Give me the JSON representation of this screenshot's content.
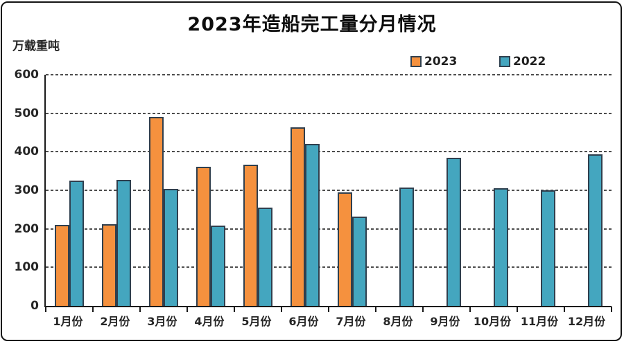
{
  "title": "2023年造船完工量分月情况",
  "unit_label": "万载重吨",
  "legend": [
    {
      "label": "2023",
      "color": "#F5913E"
    },
    {
      "label": "2022",
      "color": "#44A6BF"
    }
  ],
  "colors": {
    "bar_2023": "#F5913E",
    "bar_2022": "#44A6BF",
    "bar_border": "#2F3F4E",
    "gridline": "#4D4D4D",
    "axis": "#1A1A1A",
    "frame": "#141414",
    "background": "#FFFFFF"
  },
  "y_axis": {
    "ticks": [
      0,
      100,
      200,
      300,
      400,
      500,
      600
    ],
    "max": 600
  },
  "chart_data": {
    "type": "bar",
    "title": "2023年造船完工量分月情况",
    "ylabel": "万载重吨",
    "xlabel": "",
    "ylim": [
      0,
      600
    ],
    "grid": true,
    "legend_position": "top-right",
    "categories": [
      "1月份",
      "2月份",
      "3月份",
      "4月份",
      "5月份",
      "6月份",
      "7月份",
      "8月份",
      "9月份",
      "10月份",
      "11月份",
      "12月份"
    ],
    "series": [
      {
        "name": "2023",
        "color": "#F5913E",
        "values": [
          210,
          212,
          490,
          361,
          366,
          464,
          294,
          null,
          null,
          null,
          null,
          null
        ]
      },
      {
        "name": "2022",
        "color": "#44A6BF",
        "values": [
          325,
          327,
          304,
          208,
          256,
          420,
          232,
          308,
          384,
          305,
          300,
          393
        ]
      }
    ]
  }
}
